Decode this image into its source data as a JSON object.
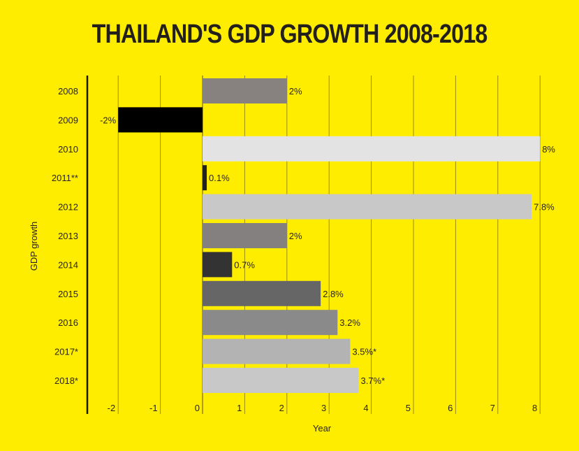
{
  "chart_data": {
    "type": "bar",
    "orientation": "horizontal",
    "title": "THAILAND'S GDP GROWTH 2008-2018",
    "xlabel": "Year",
    "ylabel": "GDP growth",
    "xlim": [
      -2.6,
      8.2
    ],
    "xticks": [
      -2,
      -1,
      0,
      1,
      2,
      3,
      4,
      5,
      6,
      7,
      8
    ],
    "grid": true,
    "categories": [
      "2008",
      "2009",
      "2010",
      "2011**",
      "2012",
      "2013",
      "2014",
      "2015",
      "2016",
      "2017*",
      "2018*"
    ],
    "values": [
      2,
      -2,
      8,
      0.1,
      7.8,
      2,
      0.7,
      2.8,
      3.2,
      3.5,
      3.7
    ],
    "data_labels": [
      "2%",
      "-2%",
      "8%",
      "0.1%",
      "7.8%",
      "2%",
      "0.7%",
      "2.8%",
      "3.2%",
      "3.5%*",
      "3.7%*"
    ],
    "bar_colors": [
      "#878180",
      "#000000",
      "#e3e3e3",
      "#222222",
      "#c8c8c8",
      "#858080",
      "#333333",
      "#666666",
      "#8a8a8a",
      "#b3b3b3",
      "#c8c8c8"
    ],
    "background": "#ffed00"
  }
}
